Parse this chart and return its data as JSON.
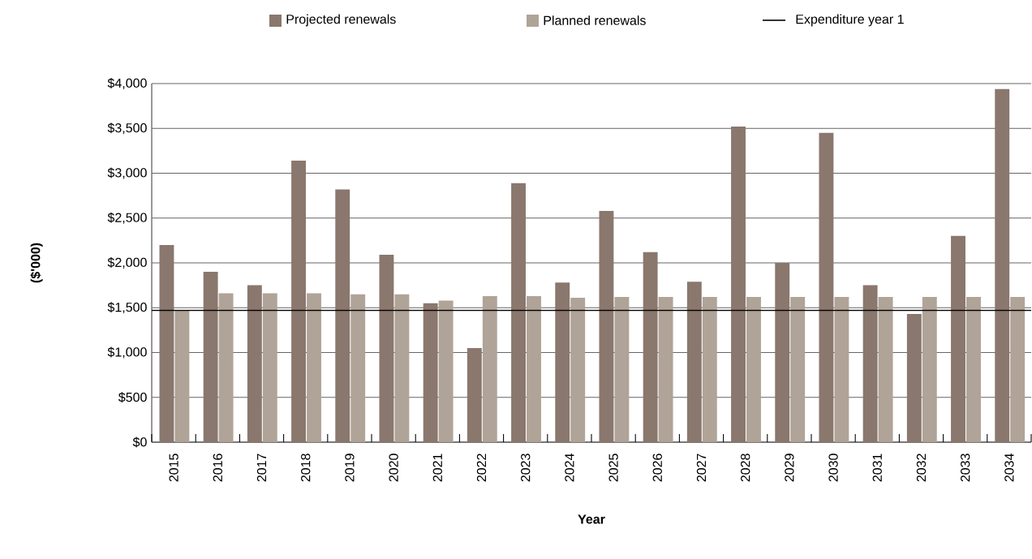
{
  "chart_data": {
    "type": "bar",
    "xlabel": "Year",
    "ylabel": "($'000)",
    "categories": [
      "2015",
      "2016",
      "2017",
      "2018",
      "2019",
      "2020",
      "2021",
      "2022",
      "2023",
      "2024",
      "2025",
      "2026",
      "2027",
      "2028",
      "2029",
      "2030",
      "2031",
      "2032",
      "2033",
      "2034"
    ],
    "series": [
      {
        "name": "Projected renewals",
        "color": "#8a776d",
        "values": [
          2200,
          1900,
          1750,
          3140,
          2820,
          2090,
          1550,
          1050,
          2890,
          1780,
          2580,
          2120,
          1790,
          3520,
          2000,
          3450,
          1750,
          1430,
          2300,
          3940
        ]
      },
      {
        "name": "Planned renewals",
        "color": "#b0a397",
        "values": [
          1470,
          1660,
          1660,
          1660,
          1650,
          1650,
          1580,
          1630,
          1630,
          1610,
          1620,
          1620,
          1620,
          1620,
          1620,
          1620,
          1620,
          1620,
          1620,
          1620
        ]
      }
    ],
    "ref_lines": [
      {
        "axis": "y",
        "value": 1470,
        "label": "Expenditure year 1",
        "color": "#000000",
        "line_style": "solid"
      }
    ],
    "ylim": [
      0,
      4000
    ],
    "yticks": [
      {
        "value": 0,
        "label": "$0"
      },
      {
        "value": 500,
        "label": "$500"
      },
      {
        "value": 1000,
        "label": "$1,000"
      },
      {
        "value": 1500,
        "label": "$1,500"
      },
      {
        "value": 2000,
        "label": "$2,000"
      },
      {
        "value": 2500,
        "label": "$2,500"
      },
      {
        "value": 3000,
        "label": "$3,000"
      },
      {
        "value": 3500,
        "label": "$3,500"
      },
      {
        "value": 4000,
        "label": "$4,000"
      }
    ],
    "grid": "y",
    "legend": "top"
  }
}
